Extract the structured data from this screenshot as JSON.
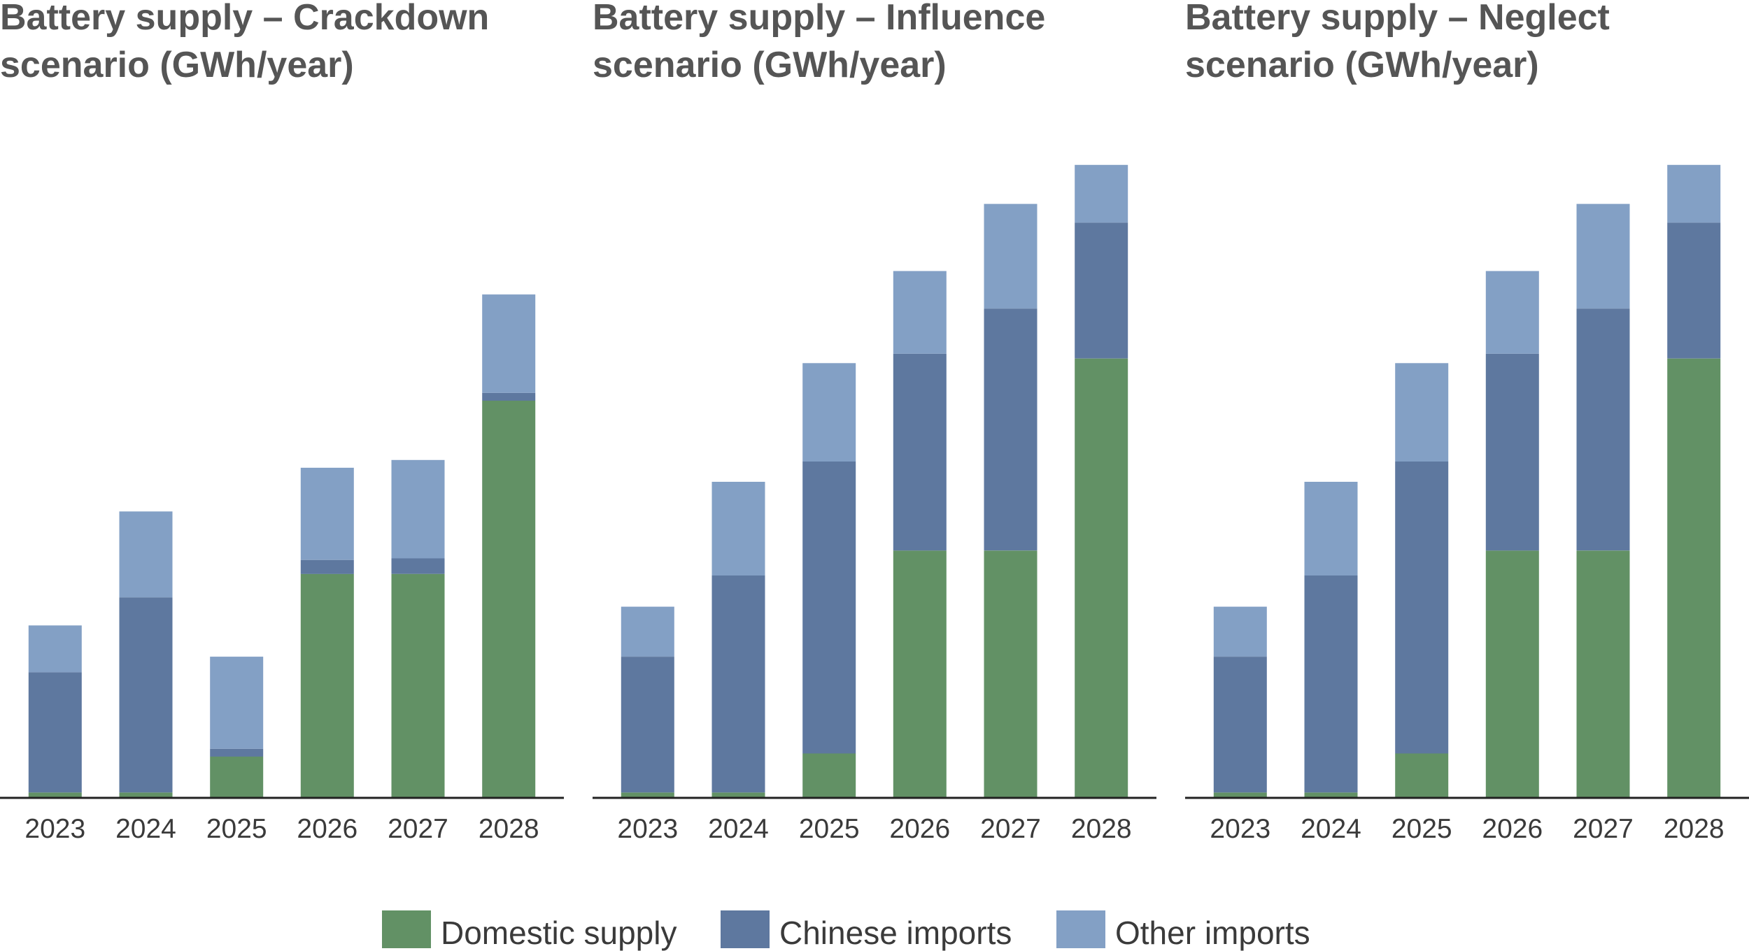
{
  "colors": {
    "domestic": "#629165",
    "chinese": "#5e789f",
    "other": "#83a0c5",
    "axis": "#222222",
    "text": "#3a3a3a",
    "title": "#555555"
  },
  "legend": [
    {
      "key": "domestic",
      "label": "Domestic supply"
    },
    {
      "key": "chinese",
      "label": "Chinese imports"
    },
    {
      "key": "other",
      "label": "Other imports"
    }
  ],
  "chart_data": [
    {
      "type": "bar",
      "stacked": true,
      "title_lines": [
        "Battery supply – Crackdown",
        "scenario (GWh/year)"
      ],
      "categories": [
        "2023",
        "2024",
        "2025",
        "2026",
        "2027",
        "2028"
      ],
      "ylim": [
        0,
        860
      ],
      "grid": false,
      "series": [
        {
          "key": "domestic",
          "name": "Domestic supply",
          "values": [
            6,
            6,
            52,
            286,
            286,
            508
          ]
        },
        {
          "key": "chinese",
          "name": "Chinese imports",
          "values": [
            154,
            250,
            10,
            18,
            20,
            10
          ]
        },
        {
          "key": "other",
          "name": "Other imports",
          "values": [
            60,
            110,
            118,
            118,
            126,
            126
          ]
        }
      ]
    },
    {
      "type": "bar",
      "stacked": true,
      "title_lines": [
        "Battery supply – Influence",
        "scenario (GWh/year)"
      ],
      "categories": [
        "2023",
        "2024",
        "2025",
        "2026",
        "2027",
        "2028"
      ],
      "ylim": [
        0,
        860
      ],
      "grid": false,
      "series": [
        {
          "key": "domestic",
          "name": "Domestic supply",
          "values": [
            6,
            6,
            56,
            316,
            316,
            562
          ]
        },
        {
          "key": "chinese",
          "name": "Chinese imports",
          "values": [
            174,
            278,
            374,
            252,
            310,
            174
          ]
        },
        {
          "key": "other",
          "name": "Other imports",
          "values": [
            64,
            120,
            126,
            106,
            134,
            74
          ]
        }
      ]
    },
    {
      "type": "bar",
      "stacked": true,
      "title_lines": [
        "Battery supply – Neglect",
        "scenario (GWh/year)"
      ],
      "categories": [
        "2023",
        "2024",
        "2025",
        "2026",
        "2027",
        "2028"
      ],
      "ylim": [
        0,
        860
      ],
      "grid": false,
      "series": [
        {
          "key": "domestic",
          "name": "Domestic supply",
          "values": [
            6,
            6,
            56,
            316,
            316,
            562
          ]
        },
        {
          "key": "chinese",
          "name": "Chinese imports",
          "values": [
            174,
            278,
            374,
            252,
            310,
            174
          ]
        },
        {
          "key": "other",
          "name": "Other imports",
          "values": [
            64,
            120,
            126,
            106,
            134,
            74
          ]
        }
      ]
    }
  ]
}
